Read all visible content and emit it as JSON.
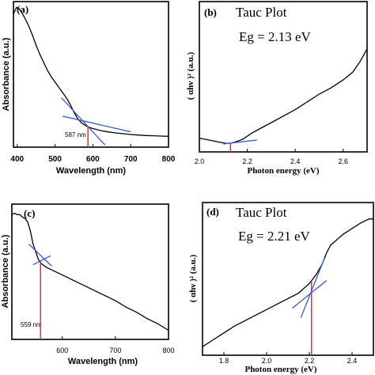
{
  "chart_data": [
    {
      "id": "a",
      "type": "line",
      "panel_label": "(a)",
      "xlabel": "Wavelength (nm)",
      "ylabel": "Absorbance (a.u.)",
      "xlim": [
        390,
        800
      ],
      "ylim": [
        0,
        1
      ],
      "x_ticks": [
        400,
        500,
        600,
        700,
        800
      ],
      "y_ticks": [],
      "series": [
        {
          "x": [
            390,
            398,
            405,
            412,
            420,
            430,
            440,
            450,
            460,
            470,
            480,
            490,
            500,
            510,
            520,
            530,
            540,
            550,
            560,
            570,
            580,
            590,
            600,
            620,
            640,
            660,
            680,
            700,
            720,
            740,
            760,
            780,
            800
          ],
          "y": [
            0.95,
            1.0,
            0.99,
            0.96,
            0.92,
            0.86,
            0.79,
            0.71,
            0.64,
            0.58,
            0.52,
            0.47,
            0.43,
            0.39,
            0.35,
            0.31,
            0.26,
            0.2,
            0.15,
            0.12,
            0.1,
            0.085,
            0.075,
            0.06,
            0.05,
            0.042,
            0.036,
            0.03,
            0.026,
            0.022,
            0.02,
            0.018,
            0.016
          ]
        }
      ],
      "tangent_lines": [
        {
          "x": [
            517,
            632
          ],
          "y": [
            0.31,
            -0.05
          ]
        },
        {
          "x": [
            520,
            700
          ],
          "y": [
            0.17,
            0.05
          ]
        }
      ],
      "marker": {
        "x": 587,
        "label": "587 nm"
      }
    },
    {
      "id": "b",
      "type": "line",
      "panel_label": "(b)",
      "title": "Tauc Plot",
      "annotation": "Eg = 2.13 eV",
      "xlabel": "Photon energy (eV)",
      "ylabel": "( αhν )²  (a.u.)",
      "xlim": [
        2.0,
        2.7
      ],
      "ylim": [
        0,
        1
      ],
      "x_ticks": [
        2.0,
        2.2,
        2.4,
        2.6
      ],
      "x_tick_labels": [
        "2.0",
        "2.2",
        "2.4",
        "2.6"
      ],
      "series": [
        {
          "x": [
            2.0,
            2.04,
            2.08,
            2.11,
            2.13,
            2.15,
            2.18,
            2.22,
            2.26,
            2.3,
            2.35,
            2.4,
            2.45,
            2.5,
            2.55,
            2.6,
            2.64,
            2.67,
            2.7
          ],
          "y": [
            0.06,
            0.045,
            0.03,
            0.02,
            0.02,
            0.03,
            0.05,
            0.1,
            0.14,
            0.18,
            0.23,
            0.28,
            0.34,
            0.4,
            0.45,
            0.51,
            0.57,
            0.65,
            0.75
          ]
        }
      ],
      "tangent_lines": [
        {
          "x": [
            2.1,
            2.24
          ],
          "y": [
            0.015,
            0.045
          ]
        }
      ],
      "marker": {
        "x": 2.13
      }
    },
    {
      "id": "c",
      "type": "line",
      "panel_label": "(c)",
      "xlabel": "Wavelength (nm)",
      "ylabel": "Absorbance (a.u.)",
      "xlim": [
        505,
        800
      ],
      "ylim": [
        0,
        1
      ],
      "x_ticks": [
        600,
        700,
        800
      ],
      "y_ticks": [],
      "series": [
        {
          "x": [
            505,
            510,
            515,
            520,
            525,
            530,
            535,
            540,
            545,
            550,
            555,
            560,
            570,
            580,
            600,
            620,
            640,
            660,
            680,
            700,
            720,
            740,
            760,
            780,
            800
          ],
          "y": [
            0.95,
            0.96,
            0.95,
            0.95,
            0.93,
            0.92,
            0.89,
            0.82,
            0.72,
            0.66,
            0.6,
            0.57,
            0.54,
            0.52,
            0.48,
            0.44,
            0.4,
            0.36,
            0.32,
            0.28,
            0.23,
            0.19,
            0.14,
            0.1,
            0.05
          ]
        }
      ],
      "tangent_lines": [
        {
          "x": [
            537,
            580
          ],
          "y": [
            0.72,
            0.55
          ]
        },
        {
          "x": [
            545,
            578
          ],
          "y": [
            0.56,
            0.63
          ]
        }
      ],
      "marker": {
        "x": 559,
        "label": "559 nm"
      }
    },
    {
      "id": "d",
      "type": "line",
      "panel_label": "(d)",
      "title": "Tauc Plot",
      "annotation": "Eg = 2.21 eV",
      "xlabel": "Photon energy (eV)",
      "ylabel": "( αhν )²  (a.u.)",
      "xlim": [
        1.7,
        2.5
      ],
      "ylim": [
        0,
        1
      ],
      "x_ticks": [
        1.8,
        2.0,
        2.2,
        2.4
      ],
      "x_tick_labels": [
        "1.8",
        "2.0",
        "2.2",
        "2.4"
      ],
      "series": [
        {
          "x": [
            1.7,
            1.75,
            1.8,
            1.85,
            1.9,
            1.95,
            2.0,
            2.05,
            2.1,
            2.15,
            2.2,
            2.23,
            2.26,
            2.28,
            2.3,
            2.33,
            2.36,
            2.4,
            2.44,
            2.48,
            2.5
          ],
          "y": [
            0.04,
            0.09,
            0.14,
            0.19,
            0.23,
            0.27,
            0.31,
            0.35,
            0.39,
            0.43,
            0.5,
            0.56,
            0.64,
            0.72,
            0.78,
            0.82,
            0.86,
            0.9,
            0.94,
            0.97,
            0.97
          ]
        }
      ],
      "tangent_lines": [
        {
          "x": [
            2.12,
            2.28
          ],
          "y": [
            0.32,
            0.52
          ]
        },
        {
          "x": [
            2.16,
            2.27
          ],
          "y": [
            0.25,
            0.68
          ]
        }
      ],
      "marker": {
        "x": 2.21
      }
    }
  ]
}
